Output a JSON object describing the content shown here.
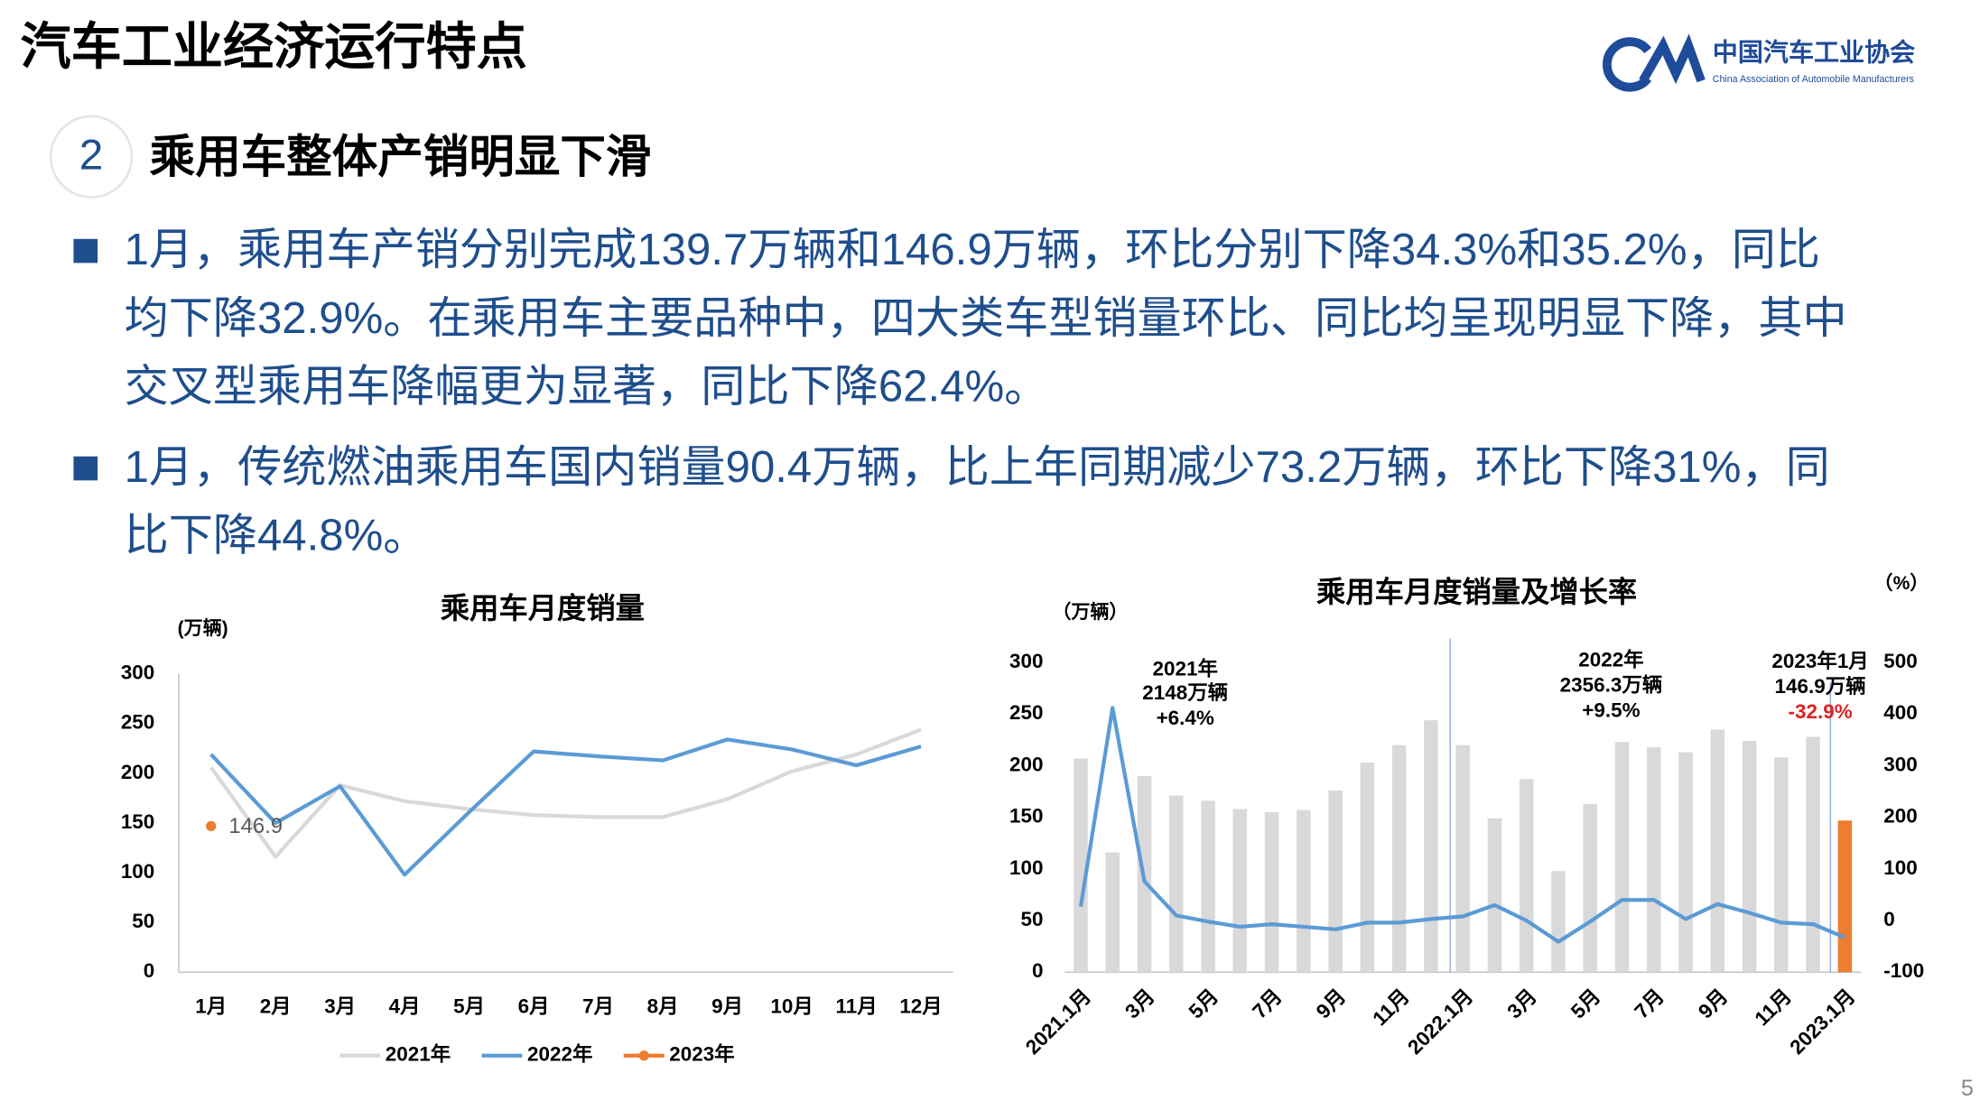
{
  "header": {
    "title": "汽车工业经济运行特点",
    "logo_cn": "中国汽车工业协会",
    "logo_en": "China Association of Automobile Manufacturers"
  },
  "section": {
    "number": "2",
    "heading": "乘用车整体产销明显下滑"
  },
  "bullets": [
    [
      "1月，乘用车产销分别完成139.7万辆和146.9万辆，环比分别下降34.3%和35.2%，同比",
      "均下降32.9%。在乘用车主要品种中，四大类车型销量环比、同比均呈现明显下降，其中",
      "交叉型乘用车降幅更为显著，同比下降62.4%。"
    ],
    [
      "1月，传统燃油乘用车国内销量90.4万辆，比上年同期减少73.2万辆，环比下降31%，同",
      "比下降44.8%。"
    ]
  ],
  "page_number": "5",
  "chart_data": [
    {
      "type": "line",
      "title": "乘用车月度销量",
      "y_label": "(万辆)",
      "categories": [
        "1月",
        "2月",
        "3月",
        "4月",
        "5月",
        "6月",
        "7月",
        "8月",
        "9月",
        "10月",
        "11月",
        "12月"
      ],
      "series": [
        {
          "name": "2021年",
          "color": "#d9d9d9",
          "values": [
            206,
            116,
            188,
            172,
            164,
            158,
            156,
            156,
            174,
            202,
            219,
            244
          ]
        },
        {
          "name": "2022年",
          "color": "#5b9bd5",
          "values": [
            219,
            150,
            187,
            98,
            161,
            222,
            217,
            213,
            234,
            224,
            208,
            227
          ]
        },
        {
          "name": "2023年",
          "color": "#ed7d31",
          "data_labels": true,
          "values": [
            146.9,
            null,
            null,
            null,
            null,
            null,
            null,
            null,
            null,
            null,
            null,
            null
          ]
        }
      ],
      "ylim": [
        0,
        300
      ],
      "yticks": [
        0,
        50,
        100,
        150,
        200,
        250,
        300
      ],
      "grid": false,
      "legend": "bottom"
    },
    {
      "type": "bar_line",
      "title": "乘用车月度销量及增长率",
      "y_label": "（万辆）",
      "y2_label": "（%）",
      "categories": [
        "2021.1月",
        null,
        "3月",
        null,
        "5月",
        null,
        "7月",
        null,
        "9月",
        null,
        "11月",
        null,
        "2022.1月",
        null,
        "3月",
        null,
        "5月",
        null,
        "7月",
        null,
        "9月",
        null,
        "11月",
        null,
        "2023.1月"
      ],
      "series": [
        {
          "type": "bar",
          "colors": [
            "#d9d9d9",
            "#d9d9d9",
            "#d9d9d9",
            "#d9d9d9",
            "#d9d9d9",
            "#d9d9d9",
            "#d9d9d9",
            "#d9d9d9",
            "#d9d9d9",
            "#d9d9d9",
            "#d9d9d9",
            "#d9d9d9",
            "#d9d9d9",
            "#d9d9d9",
            "#d9d9d9",
            "#d9d9d9",
            "#d9d9d9",
            "#d9d9d9",
            "#d9d9d9",
            "#d9d9d9",
            "#d9d9d9",
            "#d9d9d9",
            "#d9d9d9",
            "#d9d9d9",
            "#ed7d31"
          ],
          "values": [
            207,
            116,
            190,
            171,
            166,
            158,
            155,
            157,
            176,
            203,
            220,
            244,
            220,
            149,
            187,
            98,
            163,
            223,
            218,
            213,
            235,
            224,
            208,
            228,
            146.9
          ]
        },
        {
          "type": "line",
          "axis": "y2",
          "color": "#5b9bd5",
          "values": [
            27,
            412,
            76,
            10,
            -2,
            -12,
            -7,
            -12,
            -17,
            -4,
            -4,
            3,
            8,
            30,
            0,
            -41,
            -2,
            40,
            40,
            3,
            32,
            15,
            -4,
            -7,
            -32.9
          ]
        }
      ],
      "ylim": [
        0,
        300
      ],
      "yticks": [
        0,
        50,
        100,
        150,
        200,
        250,
        300
      ],
      "y2lim": [
        -100,
        500
      ],
      "y2ticks": [
        -100,
        0,
        100,
        200,
        300,
        400,
        500
      ],
      "annotations": [
        [
          "2021年",
          "2148万辆",
          "+6.4%"
        ],
        [
          "2022年",
          "2356.3万辆",
          "+9.5%"
        ],
        [
          "2023年1月",
          "146.9万辆",
          "-32.9%"
        ]
      ]
    }
  ]
}
